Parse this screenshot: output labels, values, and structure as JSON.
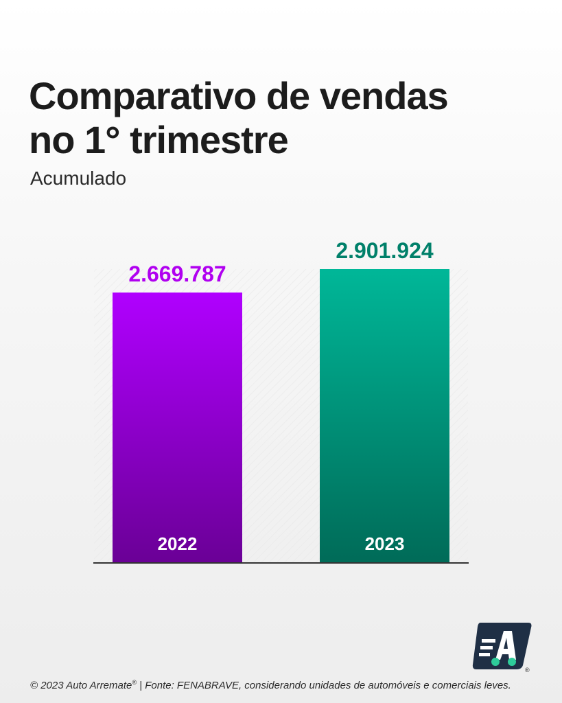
{
  "title_line1": "Comparativo de vendas",
  "title_line2": "no 1° trimestre",
  "subtitle": "Acumulado",
  "chart_data": {
    "type": "bar",
    "title": "Comparativo de vendas no 1° trimestre",
    "subtitle": "Acumulado",
    "categories": [
      "2022",
      "2023"
    ],
    "values": [
      2669787,
      2901924
    ],
    "value_labels": [
      "2.669.787",
      "2.901.924"
    ],
    "colors": [
      "#a800e6",
      "#00b394"
    ],
    "value_label_colors": [
      "#b000f0",
      "#00806a"
    ],
    "grid": false,
    "legend": "none"
  },
  "footer": {
    "copyright": "© 2023 Auto Arremate",
    "registered": "®",
    "source": "  | Fonte: FENABRAVE, considerando unidades de automóveis e comerciais leves."
  },
  "logo": {
    "name": "auto-arremate-logo",
    "letter": "A",
    "registered": "®"
  }
}
